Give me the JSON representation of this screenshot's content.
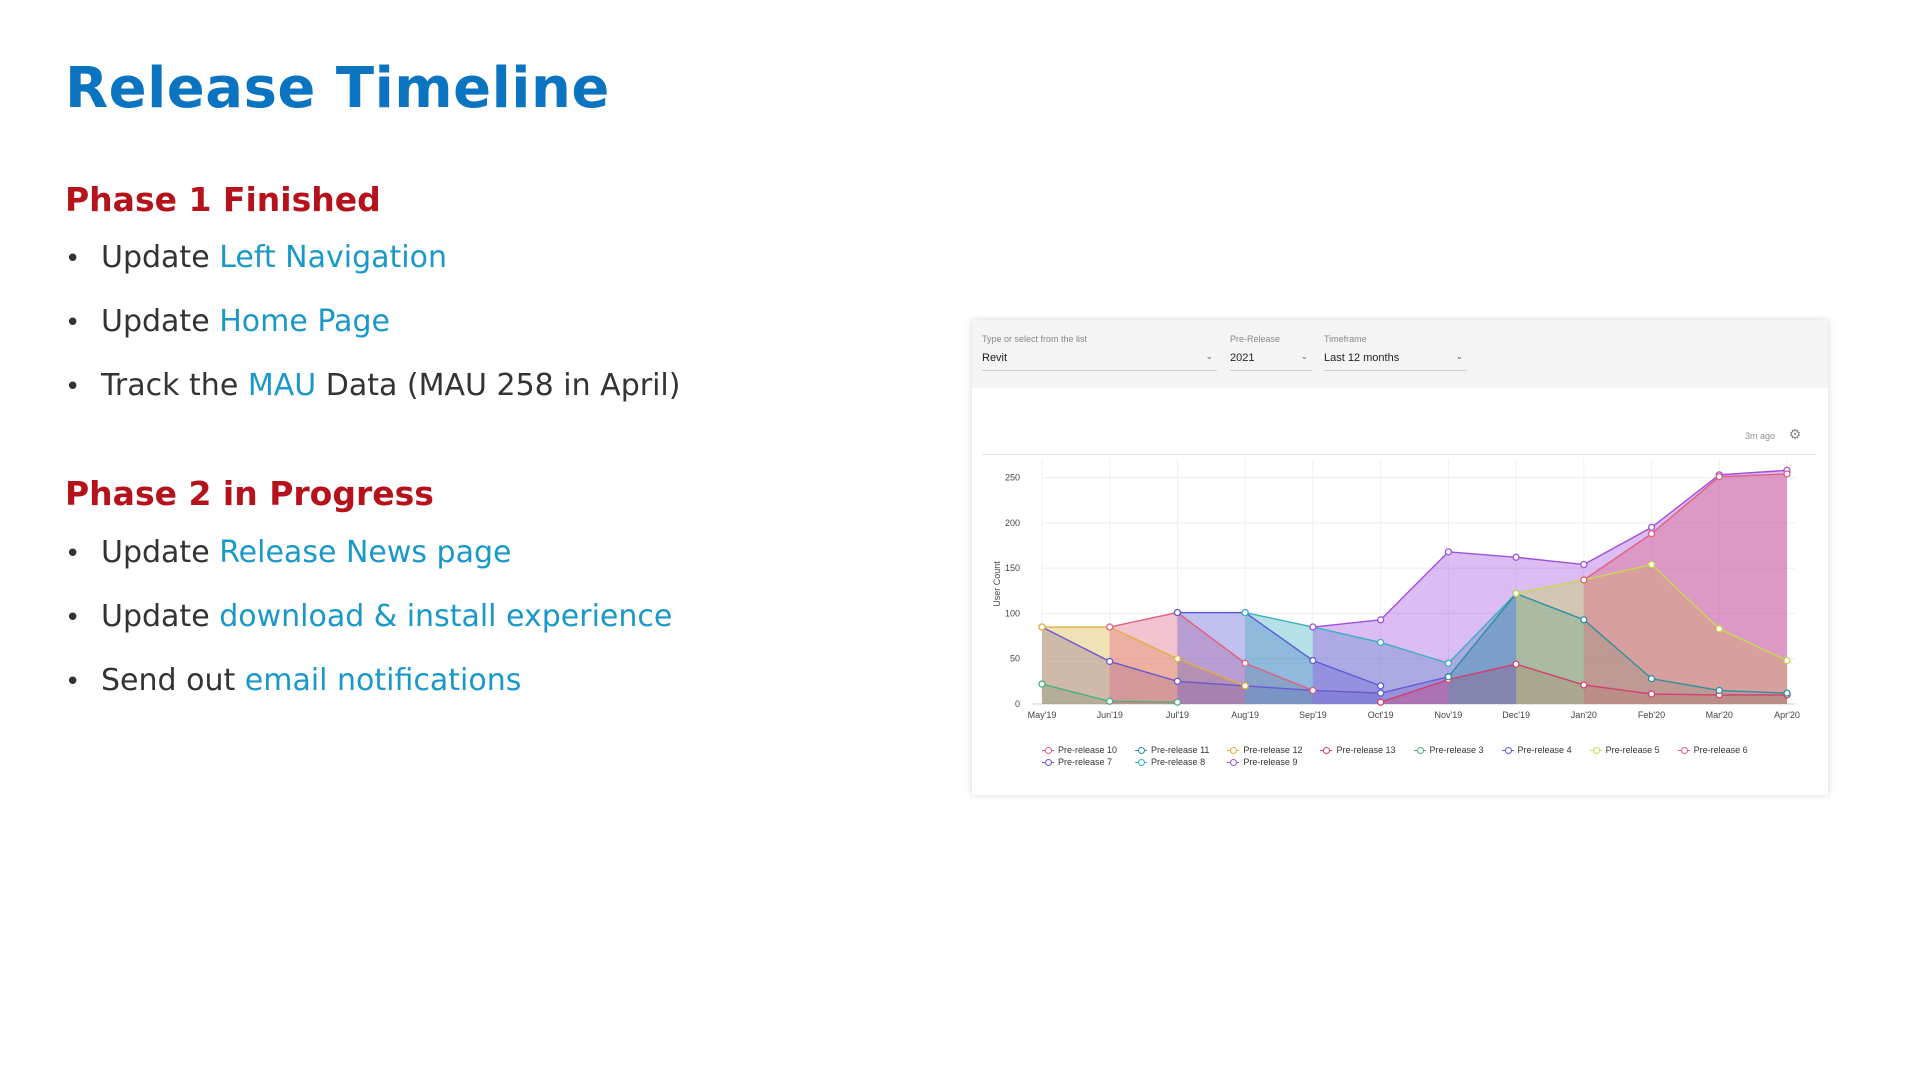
{
  "slide": {
    "title": "Release Timeline",
    "phase1": {
      "heading": "Phase 1 Finished",
      "items": [
        {
          "prefix": "Update ",
          "link": "Left Navigation",
          "suffix": ""
        },
        {
          "prefix": "Update ",
          "link": "Home Page",
          "suffix": ""
        },
        {
          "prefix": "Track the ",
          "link": "MAU",
          "suffix": " Data (MAU 258 in April)"
        }
      ]
    },
    "phase2": {
      "heading": "Phase 2 in Progress",
      "items": [
        {
          "prefix": "Update ",
          "link": "Release News page",
          "suffix": ""
        },
        {
          "prefix": "Update ",
          "link": "download & install experience",
          "suffix": ""
        },
        {
          "prefix": "Send out ",
          "link": "email notifications",
          "suffix": ""
        }
      ]
    },
    "bullet": "•"
  },
  "dashboard": {
    "filters": {
      "product": {
        "label": "Type or select from the list",
        "value": "Revit"
      },
      "prerelease": {
        "label": "Pre-Release",
        "value": "2021"
      },
      "timeframe": {
        "label": "Timeframe",
        "value": "Last 12 months"
      }
    },
    "updated": "3m ago",
    "icons": {
      "settings": "gear-icon",
      "dropdown": "chevron-down-icon"
    }
  },
  "chart_data": {
    "type": "area",
    "ylabel": "User Count",
    "xlabel": "",
    "categories": [
      "May'19",
      "Jun'19",
      "Jul'19",
      "Aug'19",
      "Sep'19",
      "Oct'19",
      "Nov'19",
      "Dec'19",
      "Jan'20",
      "Feb'20",
      "Mar'20",
      "Apr'20"
    ],
    "yticks": [
      0,
      50,
      100,
      150,
      200,
      250
    ],
    "ylim": [
      0,
      265
    ],
    "grid": true,
    "legend_position": "bottom",
    "series": [
      {
        "name": "Pre-release 3",
        "color": "#4caf7d",
        "values": [
          22,
          3,
          2,
          null,
          null,
          null,
          null,
          null,
          null,
          null,
          null,
          null
        ]
      },
      {
        "name": "Pre-release 7",
        "color": "#6a5acd",
        "values": [
          85,
          47,
          25,
          20,
          15,
          12,
          30,
          null,
          null,
          null,
          null,
          null
        ]
      },
      {
        "name": "Pre-release 12",
        "color": "#e0b040",
        "values": [
          85,
          85,
          50,
          20,
          null,
          null,
          null,
          null,
          null,
          null,
          null,
          null
        ]
      },
      {
        "name": "Pre-release 6",
        "color": "#e06080",
        "values": [
          null,
          85,
          101,
          45,
          15,
          null,
          null,
          null,
          null,
          null,
          null,
          null
        ]
      },
      {
        "name": "Pre-release 4",
        "color": "#5b5bd6",
        "values": [
          null,
          null,
          101,
          101,
          48,
          20,
          null,
          null,
          null,
          null,
          null,
          null
        ]
      },
      {
        "name": "Pre-release 8",
        "color": "#3ab0c0",
        "values": [
          null,
          null,
          null,
          101,
          85,
          68,
          45,
          122,
          null,
          null,
          null,
          null
        ]
      },
      {
        "name": "Pre-release 9",
        "color": "#a050e0",
        "values": [
          null,
          null,
          null,
          null,
          85,
          93,
          168,
          162,
          154,
          195,
          253,
          258
        ]
      },
      {
        "name": "Pre-release 13",
        "color": "#d04070",
        "values": [
          null,
          null,
          null,
          null,
          null,
          2,
          27,
          44,
          21,
          11,
          10,
          10
        ]
      },
      {
        "name": "Pre-release 11",
        "color": "#2e8fa0",
        "values": [
          null,
          null,
          null,
          null,
          null,
          null,
          30,
          122,
          93,
          28,
          15,
          12
        ]
      },
      {
        "name": "Pre-release 5",
        "color": "#c8d850",
        "values": [
          null,
          null,
          null,
          null,
          null,
          null,
          null,
          122,
          137,
          154,
          83,
          48
        ]
      },
      {
        "name": "Pre-release 10",
        "color": "#e0607e",
        "values": [
          null,
          null,
          null,
          null,
          null,
          null,
          null,
          null,
          137,
          188,
          251,
          254
        ]
      }
    ],
    "legend_order": [
      "Pre-release 10",
      "Pre-release 11",
      "Pre-release 12",
      "Pre-release 13",
      "Pre-release 3",
      "Pre-release 4",
      "Pre-release 5",
      "Pre-release 6",
      "Pre-release 7",
      "Pre-release 8",
      "Pre-release 9"
    ]
  }
}
